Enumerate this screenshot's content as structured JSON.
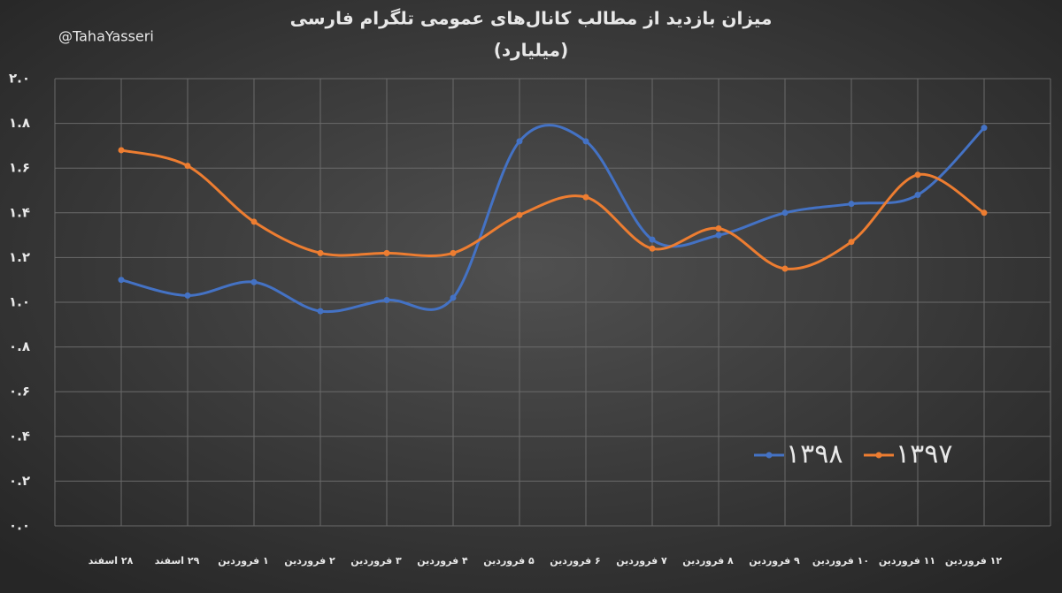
{
  "chart_data": {
    "type": "line",
    "title": "میزان بازدید از مطالب کانال‌های عمومی تلگرام فارسی",
    "subtitle": "(میلیارد)",
    "annotation": "@TahaYasseri",
    "categories": [
      "۲۸ اسفند",
      "۲۹ اسفند",
      "۱ فروردین",
      "۲ فروردین",
      "۳ فروردین",
      "۴ فروردین",
      "۵ فروردین",
      "۶ فروردین",
      "۷ فروردین",
      "۸ فروردین",
      "۹ فروردین",
      "۱۰ فروردین",
      "۱۱ فروردین",
      "۱۲ فروردین"
    ],
    "series": [
      {
        "name": "۱۳۹۸",
        "color": "#4472c4",
        "values": [
          1.1,
          1.03,
          1.09,
          0.96,
          1.01,
          1.02,
          1.72,
          1.72,
          1.28,
          1.3,
          1.4,
          1.44,
          1.48,
          1.78
        ]
      },
      {
        "name": "۱۳۹۷",
        "color": "#ed7d31",
        "values": [
          1.68,
          1.61,
          1.36,
          1.22,
          1.22,
          1.22,
          1.39,
          1.47,
          1.24,
          1.33,
          1.15,
          1.27,
          1.57,
          1.4
        ]
      }
    ],
    "ylim": [
      0,
      2
    ],
    "yticks": [
      {
        "value": 0,
        "label": "۰.۰"
      },
      {
        "value": 0.2,
        "label": "۰.۲"
      },
      {
        "value": 0.4,
        "label": "۰.۴"
      },
      {
        "value": 0.6,
        "label": "۰.۶"
      },
      {
        "value": 0.8,
        "label": "۰.۸"
      },
      {
        "value": 1.0,
        "label": "۱.۰"
      },
      {
        "value": 1.2,
        "label": "۱.۲"
      },
      {
        "value": 1.4,
        "label": "۱.۴"
      },
      {
        "value": 1.6,
        "label": "۱.۶"
      },
      {
        "value": 1.8,
        "label": "۱.۸"
      },
      {
        "value": 2.0,
        "label": "۲.۰"
      }
    ],
    "grid": true,
    "smooth": true,
    "legend": "lower right"
  }
}
